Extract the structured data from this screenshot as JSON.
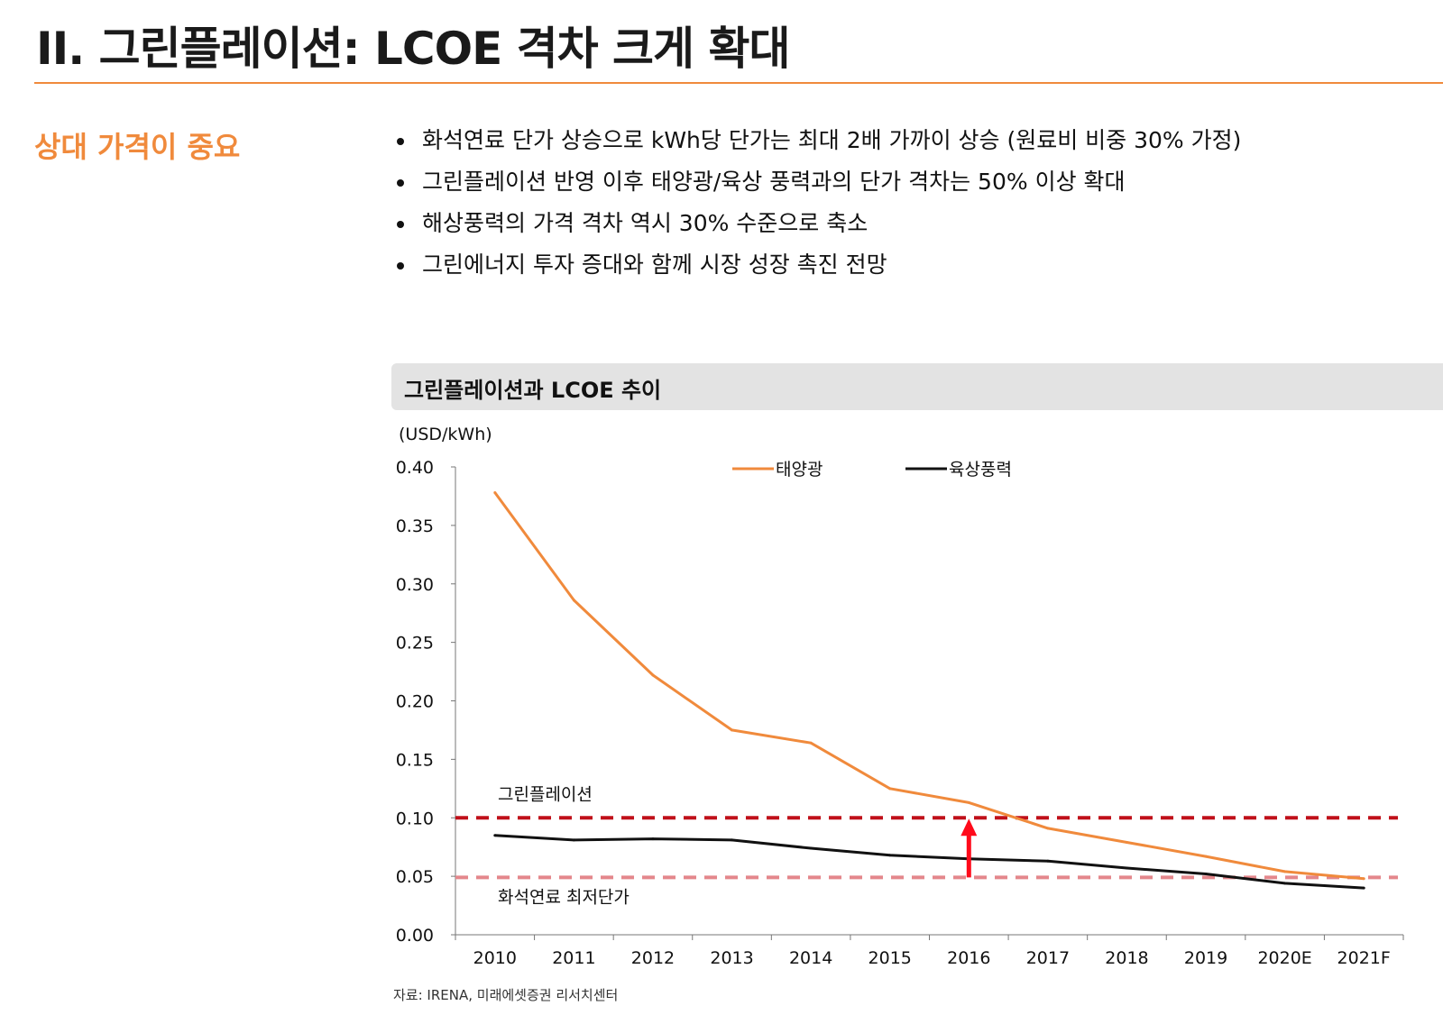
{
  "page": {
    "title": "II. 그린플레이션: LCOE 격차 크게 확대",
    "section_heading": "상대 가격이 중요",
    "bullets": [
      "화석연료 단가 상승으로 kWh당 단가는 최대 2배 가까이 상승 (원료비 비중 30% 가정)",
      "그린플레이션 반영 이후 태양광/육상 풍력과의 단가 격차는 50% 이상 확대",
      "해상풍력의 가격 격차 역시 30% 수준으로 축소",
      "그린에너지 투자 증대와 함께 시장 성장 촉진 전망"
    ],
    "source": "자료: IRENA, 미래에셋증권 리서치센터"
  },
  "chart_data": {
    "type": "line",
    "title": "그린플레이션과 LCOE 추이",
    "ylabel": "(USD/kWh)",
    "ylim": [
      0,
      0.4
    ],
    "yticks": [
      "0.00",
      "0.05",
      "0.10",
      "0.15",
      "0.20",
      "0.25",
      "0.30",
      "0.35",
      "0.40"
    ],
    "categories": [
      "2010",
      "2011",
      "2012",
      "2013",
      "2014",
      "2015",
      "2016",
      "2017",
      "2018",
      "2019",
      "2020E",
      "2021F"
    ],
    "series": [
      {
        "name": "태양광",
        "color": "#f08a3c",
        "values": [
          0.378,
          0.286,
          0.222,
          0.175,
          0.164,
          0.125,
          0.113,
          0.091,
          0.079,
          0.067,
          0.054,
          0.048
        ]
      },
      {
        "name": "육상풍력",
        "color": "#111111",
        "values": [
          0.085,
          0.081,
          0.082,
          0.081,
          0.074,
          0.068,
          0.065,
          0.063,
          0.057,
          0.052,
          0.044,
          0.04
        ]
      }
    ],
    "reference_lines": [
      {
        "label": "그린플레이션",
        "value": 0.1,
        "color": "#c0101a"
      },
      {
        "label": "화석연료 최저단가",
        "value": 0.049,
        "color": "#e4878c"
      }
    ],
    "arrow": {
      "category": "2016",
      "from": 0.049,
      "to": 0.1,
      "color": "#ff0a1a"
    },
    "legend_position": "top-center",
    "grid": false
  }
}
